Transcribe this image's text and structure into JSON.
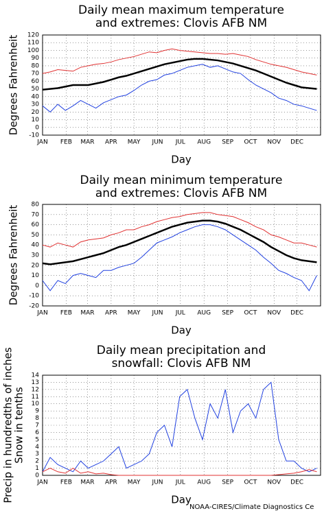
{
  "footer": "NOAA-CIRES/Climate Diagnostics Ce",
  "chart_data": [
    {
      "type": "line",
      "title": [
        "Daily mean maximum temperature",
        "and extremes: Clovis AFB NM"
      ],
      "xlabel": "Day",
      "ylabel": [
        "Degrees Fahrenheit"
      ],
      "x": [
        1,
        11,
        21,
        31,
        41,
        51,
        61,
        71,
        81,
        91,
        101,
        111,
        121,
        131,
        141,
        151,
        161,
        171,
        181,
        191,
        201,
        211,
        221,
        231,
        241,
        251,
        261,
        271,
        281,
        291,
        301,
        311,
        321,
        331,
        341,
        351,
        361
      ],
      "xlim": [
        1,
        366
      ],
      "xticks": [
        {
          "value": 1,
          "label": "JAN"
        },
        {
          "value": 32,
          "label": "FEB"
        },
        {
          "value": 60,
          "label": "MAR"
        },
        {
          "value": 91,
          "label": "APR"
        },
        {
          "value": 121,
          "label": "MAY"
        },
        {
          "value": 152,
          "label": "JUN"
        },
        {
          "value": 182,
          "label": "JUL"
        },
        {
          "value": 213,
          "label": "AUG"
        },
        {
          "value": 244,
          "label": "SEP"
        },
        {
          "value": 274,
          "label": "OCT"
        },
        {
          "value": 305,
          "label": "NOV"
        },
        {
          "value": 335,
          "label": "DEC"
        }
      ],
      "ylim": [
        -10,
        120
      ],
      "yticks": [
        -10,
        0,
        10,
        20,
        30,
        40,
        50,
        60,
        70,
        80,
        90,
        100,
        110,
        120
      ],
      "grid": true,
      "series": [
        {
          "color": "#e03030",
          "values": [
            70,
            72,
            75,
            74,
            73,
            78,
            80,
            82,
            83,
            85,
            88,
            90,
            92,
            95,
            98,
            97,
            100,
            102,
            100,
            99,
            98,
            97,
            96,
            96,
            95,
            96,
            94,
            92,
            88,
            85,
            82,
            80,
            78,
            75,
            72,
            70,
            68
          ]
        },
        {
          "color": "#2040e0",
          "values": [
            28,
            20,
            30,
            22,
            28,
            35,
            30,
            25,
            32,
            36,
            40,
            42,
            48,
            55,
            60,
            62,
            68,
            70,
            74,
            78,
            80,
            82,
            78,
            80,
            76,
            72,
            70,
            62,
            55,
            50,
            45,
            38,
            35,
            30,
            28,
            25,
            22
          ]
        },
        {
          "color": "#000000",
          "values": [
            49,
            50,
            51,
            53,
            55,
            55,
            55,
            57,
            59,
            62,
            65,
            67,
            70,
            73,
            76,
            79,
            82,
            84,
            86,
            88,
            89,
            89,
            88,
            87,
            85,
            83,
            80,
            77,
            74,
            70,
            66,
            62,
            58,
            55,
            52,
            51,
            50
          ]
        }
      ]
    },
    {
      "type": "line",
      "title": [
        "Daily mean minimum temperature",
        "and extremes: Clovis AFB NM"
      ],
      "xlabel": "Day",
      "ylabel": [
        "Degrees Fahrenheit"
      ],
      "x": [
        1,
        11,
        21,
        31,
        41,
        51,
        61,
        71,
        81,
        91,
        101,
        111,
        121,
        131,
        141,
        151,
        161,
        171,
        181,
        191,
        201,
        211,
        221,
        231,
        241,
        251,
        261,
        271,
        281,
        291,
        301,
        311,
        321,
        331,
        341,
        351,
        361
      ],
      "xlim": [
        1,
        366
      ],
      "xticks": [
        {
          "value": 1,
          "label": "JAN"
        },
        {
          "value": 32,
          "label": "FEB"
        },
        {
          "value": 60,
          "label": "MAR"
        },
        {
          "value": 91,
          "label": "APR"
        },
        {
          "value": 121,
          "label": "MAY"
        },
        {
          "value": 152,
          "label": "JUN"
        },
        {
          "value": 182,
          "label": "JUL"
        },
        {
          "value": 213,
          "label": "AUG"
        },
        {
          "value": 244,
          "label": "SEP"
        },
        {
          "value": 274,
          "label": "OCT"
        },
        {
          "value": 305,
          "label": "NOV"
        },
        {
          "value": 335,
          "label": "DEC"
        }
      ],
      "ylim": [
        -20,
        80
      ],
      "yticks": [
        -20,
        -10,
        0,
        10,
        20,
        30,
        40,
        50,
        60,
        70,
        80
      ],
      "grid": true,
      "series": [
        {
          "color": "#e03030",
          "values": [
            40,
            38,
            42,
            40,
            38,
            43,
            45,
            46,
            47,
            50,
            52,
            55,
            55,
            58,
            60,
            63,
            65,
            67,
            68,
            70,
            71,
            72,
            72,
            70,
            69,
            68,
            65,
            62,
            58,
            55,
            50,
            48,
            45,
            42,
            42,
            40,
            38
          ]
        },
        {
          "color": "#2040e0",
          "values": [
            5,
            -5,
            5,
            2,
            10,
            12,
            10,
            8,
            15,
            15,
            18,
            20,
            22,
            28,
            35,
            42,
            45,
            48,
            52,
            55,
            58,
            60,
            60,
            58,
            55,
            50,
            45,
            40,
            35,
            28,
            22,
            15,
            12,
            8,
            5,
            -5,
            10
          ]
        },
        {
          "color": "#000000",
          "values": [
            22,
            21,
            22,
            23,
            24,
            26,
            28,
            30,
            32,
            35,
            38,
            40,
            43,
            46,
            49,
            52,
            55,
            58,
            60,
            62,
            63,
            64,
            64,
            63,
            61,
            58,
            55,
            51,
            47,
            43,
            38,
            34,
            30,
            27,
            25,
            24,
            23
          ]
        }
      ]
    },
    {
      "type": "line",
      "title": [
        "Daily mean precipitation and",
        "snowfall: Clovis AFB NM"
      ],
      "xlabel": "Day",
      "ylabel": [
        "Precip in hundredths of inches",
        "Snow in tenths"
      ],
      "x": [
        1,
        11,
        21,
        31,
        41,
        51,
        61,
        71,
        81,
        91,
        101,
        111,
        121,
        131,
        141,
        151,
        161,
        171,
        181,
        191,
        201,
        211,
        221,
        231,
        241,
        251,
        261,
        271,
        281,
        291,
        301,
        311,
        321,
        331,
        341,
        351,
        361
      ],
      "xlim": [
        1,
        366
      ],
      "xticks": [
        {
          "value": 1,
          "label": "JAN"
        },
        {
          "value": 32,
          "label": "FEB"
        },
        {
          "value": 60,
          "label": "MAR"
        },
        {
          "value": 91,
          "label": "APR"
        },
        {
          "value": 121,
          "label": "MAY"
        },
        {
          "value": 152,
          "label": "JUN"
        },
        {
          "value": 182,
          "label": "JUL"
        },
        {
          "value": 213,
          "label": "AUG"
        },
        {
          "value": 244,
          "label": "SEP"
        },
        {
          "value": 274,
          "label": "OCT"
        },
        {
          "value": 305,
          "label": "NOV"
        },
        {
          "value": 335,
          "label": "DEC"
        }
      ],
      "ylim": [
        0,
        14
      ],
      "yticks": [
        0,
        1,
        2,
        3,
        4,
        5,
        6,
        7,
        8,
        9,
        10,
        11,
        12,
        13,
        14
      ],
      "grid": true,
      "series": [
        {
          "color": "#2040e0",
          "values": [
            0.5,
            2.5,
            1.5,
            1,
            0.5,
            2,
            1,
            1.5,
            2,
            3,
            4,
            1,
            1.5,
            2,
            3,
            6,
            7,
            4,
            11,
            12,
            8,
            5,
            10,
            8,
            12,
            6,
            9,
            10,
            8,
            12,
            13,
            5,
            2,
            2,
            1,
            0.5,
            1
          ]
        },
        {
          "color": "#e03030",
          "values": [
            0.5,
            1,
            0.5,
            0.3,
            1,
            0.3,
            0.5,
            0.2,
            0.3,
            0.1,
            0,
            0,
            0,
            0,
            0,
            0,
            0,
            0,
            0,
            0,
            0,
            0,
            0,
            0,
            0,
            0,
            0,
            0,
            0,
            0,
            0,
            0.1,
            0.2,
            0.3,
            0.5,
            0.8,
            0.5
          ]
        }
      ]
    }
  ]
}
